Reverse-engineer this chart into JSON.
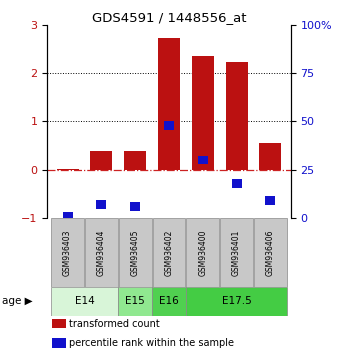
{
  "title": "GDS4591 / 1448556_at",
  "samples": [
    "GSM936403",
    "GSM936404",
    "GSM936405",
    "GSM936402",
    "GSM936400",
    "GSM936401",
    "GSM936406"
  ],
  "transformed_count": [
    0.02,
    0.38,
    0.38,
    2.72,
    2.35,
    2.22,
    0.55
  ],
  "percentile_rank": [
    1.0,
    7.0,
    6.0,
    48.0,
    30.0,
    18.0,
    9.0
  ],
  "age_groups": [
    {
      "label": "E14",
      "start": 0,
      "end": 2,
      "color": "#d8f5d8"
    },
    {
      "label": "E15",
      "start": 2,
      "end": 3,
      "color": "#90e890"
    },
    {
      "label": "E16",
      "start": 3,
      "end": 4,
      "color": "#50d050"
    },
    {
      "label": "E17.5",
      "start": 4,
      "end": 7,
      "color": "#44cc44"
    }
  ],
  "bar_color_red": "#bb1111",
  "bar_color_blue": "#1111cc",
  "ylim_left": [
    -1,
    3
  ],
  "ylim_right": [
    0,
    100
  ],
  "yticks_left": [
    -1,
    0,
    1,
    2,
    3
  ],
  "yticks_right": [
    0,
    25,
    50,
    75,
    100
  ],
  "yticklabels_right": [
    "0",
    "25",
    "50",
    "75",
    "100%"
  ],
  "zero_line_color": "#cc2222",
  "grid_color": "#000000",
  "legend_items": [
    {
      "color": "#bb1111",
      "label": "transformed count"
    },
    {
      "color": "#1111cc",
      "label": "percentile rank within the sample"
    }
  ],
  "age_label": "age",
  "bar_width": 0.65
}
